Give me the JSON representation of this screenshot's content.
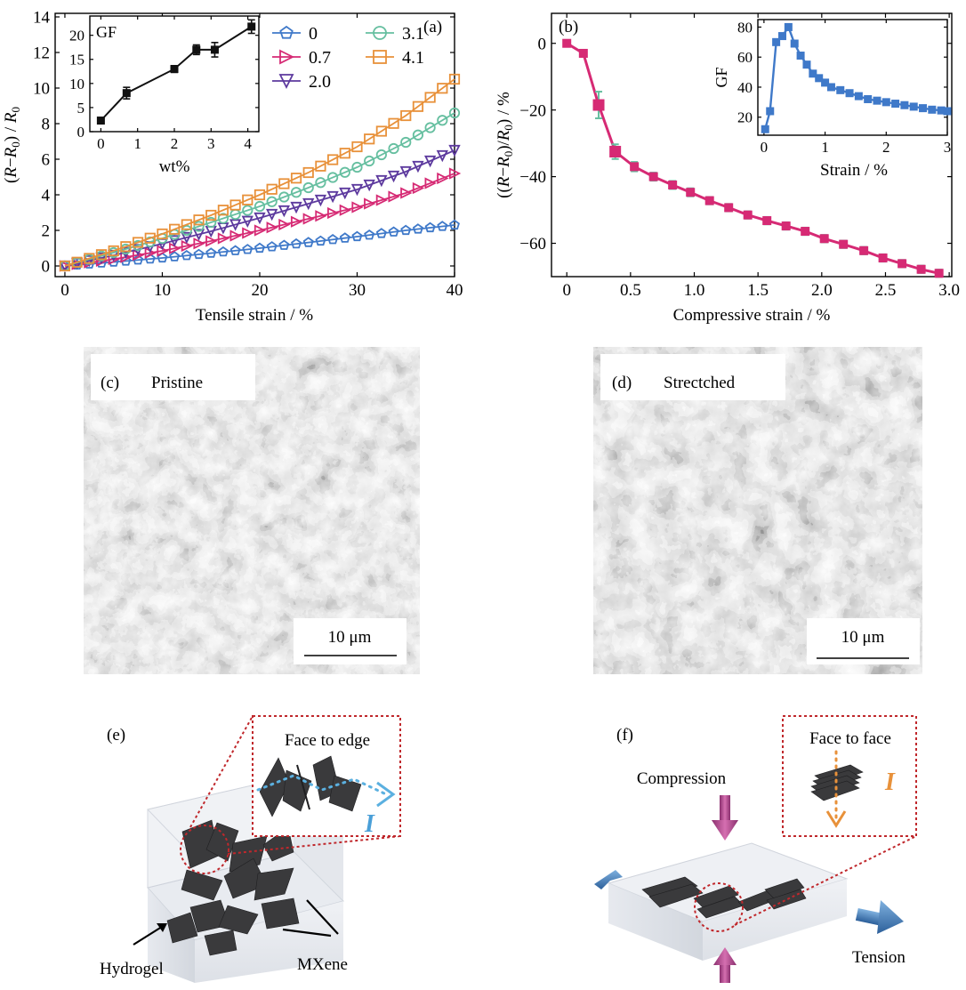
{
  "colors": {
    "s0": "#3f79c9",
    "s07": "#d62a74",
    "s20": "#5d3a9e",
    "s31": "#66bfa0",
    "s41": "#e8913a",
    "inset_a": "#111111",
    "series_b": "#d62a74",
    "errorbar_b": "#66bfa0",
    "inset_b": "#3f79c9"
  },
  "chart_data": [
    {
      "id": "a",
      "type": "line",
      "panel_label": "(a)",
      "xlabel": "Tensile strain / %",
      "ylabel": "(R−R0) / R0",
      "xlim": [
        -1,
        40
      ],
      "ylim": [
        -0.6,
        14.2
      ],
      "xticks": [
        0,
        10,
        20,
        30,
        40
      ],
      "yticks": [
        0,
        2,
        4,
        6,
        8,
        10,
        12,
        14
      ],
      "xtick_labels": [
        "0",
        "10",
        "20",
        "30",
        "40"
      ],
      "ytick_labels": [
        "0",
        "2",
        "4",
        "6",
        "8",
        "10",
        "12",
        "14"
      ],
      "legend_position": "top-right",
      "series": [
        {
          "name": "0",
          "color_key": "s0",
          "marker": "pentagon",
          "x": [
            0,
            5,
            10,
            15,
            20,
            25,
            30,
            35,
            40
          ],
          "y": [
            0,
            0.22,
            0.45,
            0.72,
            1.0,
            1.32,
            1.65,
            2.0,
            2.3
          ]
        },
        {
          "name": "0.7",
          "color_key": "s07",
          "marker": "triangle-right",
          "x": [
            0,
            5,
            10,
            15,
            20,
            25,
            30,
            35,
            40
          ],
          "y": [
            0,
            0.38,
            0.85,
            1.4,
            2.0,
            2.65,
            3.3,
            4.1,
            5.2
          ]
        },
        {
          "name": "2.0",
          "color_key": "s20",
          "marker": "triangle-down",
          "x": [
            0,
            5,
            10,
            15,
            20,
            25,
            30,
            35,
            40
          ],
          "y": [
            0,
            0.6,
            1.25,
            1.95,
            2.7,
            3.5,
            4.3,
            5.3,
            6.5
          ]
        },
        {
          "name": "3.1",
          "color_key": "s31",
          "marker": "circle",
          "x": [
            0,
            5,
            10,
            15,
            20,
            25,
            30,
            35,
            40
          ],
          "y": [
            0,
            0.75,
            1.55,
            2.45,
            3.35,
            4.4,
            5.55,
            6.95,
            8.6
          ]
        },
        {
          "name": "4.1",
          "color_key": "s41",
          "marker": "square",
          "x": [
            0,
            5,
            10,
            15,
            20,
            25,
            30,
            35,
            40
          ],
          "y": [
            0,
            0.85,
            1.8,
            2.85,
            4.0,
            5.25,
            6.7,
            8.45,
            10.5
          ]
        }
      ],
      "inset": {
        "type": "line",
        "ylabel_text": "GF",
        "xlabel": "wt%",
        "xlim": [
          -0.3,
          4.3
        ],
        "ylim": [
          0,
          24
        ],
        "xticks": [
          0,
          1,
          2,
          3,
          4
        ],
        "yticks": [
          0,
          5,
          10,
          15,
          20
        ],
        "xtick_labels": [
          "0",
          "1",
          "2",
          "3",
          "4"
        ],
        "ytick_labels": [
          "0",
          "5",
          "10",
          "15",
          "20"
        ],
        "x": [
          0,
          0.7,
          2.0,
          2.6,
          3.1,
          4.1
        ],
        "y": [
          2.3,
          8.0,
          13.0,
          17.0,
          17.0,
          21.8
        ],
        "err": [
          0.4,
          1.2,
          0.7,
          1.0,
          1.5,
          1.4
        ]
      }
    },
    {
      "id": "b",
      "type": "line",
      "panel_label": "(b)",
      "xlabel": "Compressive strain / %",
      "ylabel": "((R−R0)/R0) / %",
      "xlim": [
        -0.12,
        3.02
      ],
      "ylim": [
        -70,
        9
      ],
      "xticks": [
        0,
        0.5,
        1.0,
        1.5,
        2.0,
        2.5,
        3.0
      ],
      "yticks": [
        0,
        -20,
        -40,
        -60
      ],
      "xtick_labels": [
        "0",
        "0.5",
        "1.0",
        "1.5",
        "2.0",
        "2.5",
        "3.0"
      ],
      "ytick_labels": [
        "0",
        "−20",
        "−40",
        "−60"
      ],
      "series": [
        {
          "color_key": "series_b",
          "x": [
            0,
            0.13,
            0.25,
            0.38,
            0.53,
            0.68,
            0.83,
            0.97,
            1.12,
            1.27,
            1.42,
            1.57,
            1.72,
            1.87,
            2.02,
            2.17,
            2.33,
            2.48,
            2.63,
            2.78,
            2.92
          ],
          "y": [
            0,
            -3,
            -18.5,
            -32.5,
            -37,
            -40,
            -42.5,
            -44.7,
            -47.2,
            -49.3,
            -51.5,
            -53.2,
            -54.8,
            -56.4,
            -58.6,
            -60.3,
            -62.2,
            -64.4,
            -66.1,
            -67.8,
            -69.0
          ],
          "err": [
            0.6,
            1.0,
            4.0,
            2.2,
            1.4,
            1.2,
            1.2,
            1.2,
            1.1,
            1.1,
            1.1,
            1.1,
            1.1,
            1.1,
            1.1,
            1.1,
            1.1,
            1.1,
            1.1,
            1.1,
            1.1
          ]
        }
      ],
      "inset": {
        "type": "line",
        "ylabel_text": "GF",
        "xlabel": "Strain / %",
        "xlim": [
          -0.1,
          3.0
        ],
        "ylim": [
          8,
          85
        ],
        "xticks": [
          0,
          1,
          2,
          3
        ],
        "yticks": [
          20,
          40,
          60,
          80
        ],
        "xtick_labels": [
          "0",
          "1",
          "2",
          "3"
        ],
        "ytick_labels": [
          "20",
          "40",
          "60",
          "80"
        ],
        "x": [
          0.02,
          0.1,
          0.2,
          0.3,
          0.4,
          0.5,
          0.6,
          0.7,
          0.8,
          0.9,
          1.0,
          1.1,
          1.25,
          1.4,
          1.55,
          1.7,
          1.85,
          2.0,
          2.15,
          2.3,
          2.45,
          2.6,
          2.75,
          2.9,
          3.0
        ],
        "y": [
          12,
          24,
          70,
          74,
          80,
          69,
          61,
          55,
          49,
          46,
          43,
          40,
          38,
          36,
          34,
          32,
          31,
          30,
          29,
          28,
          27,
          26,
          25,
          24.5,
          24
        ]
      }
    }
  ],
  "panel_c": {
    "label": "(c)",
    "title": "Pristine",
    "scale": "10 μm"
  },
  "panel_d": {
    "label": "(d)",
    "title": "Strectched",
    "scale": "10 μm"
  },
  "panel_e": {
    "label": "(e)",
    "zoom_label": "Face to edge",
    "current": "I",
    "label_hydrogel": "Hydrogel",
    "label_mxene": "MXene"
  },
  "panel_f": {
    "label": "(f)",
    "zoom_label": "Face to face",
    "current": "I",
    "label_compression": "Compression",
    "label_tension": "Tension"
  }
}
